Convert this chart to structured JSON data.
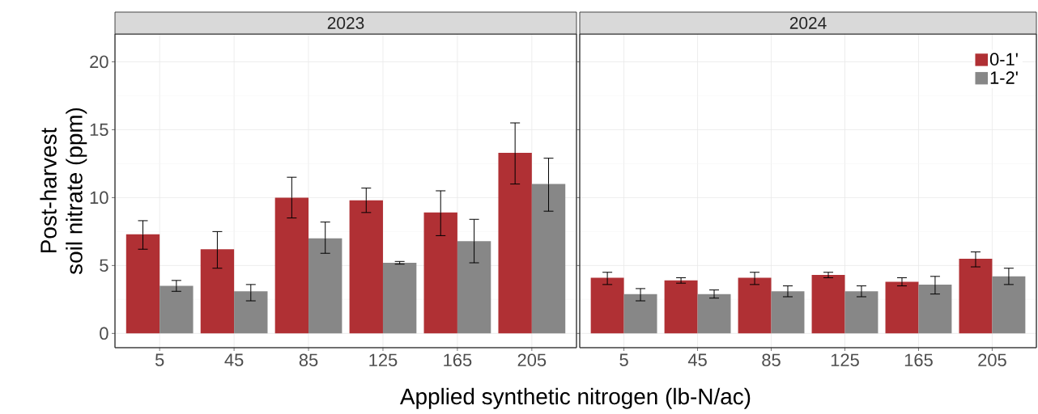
{
  "chart_data": [
    {
      "type": "bar",
      "title": "2023",
      "xlabel": "Applied synthetic nitrogen (lb-N/ac)",
      "ylabel": "Post-harvest soil nitrate (ppm)",
      "categories": [
        "5",
        "45",
        "85",
        "125",
        "165",
        "205"
      ],
      "series": [
        {
          "color": "#b03034",
          "values": [
            7.3,
            6.2,
            10.0,
            9.8,
            8.9,
            13.3
          ],
          "errors": [
            [
              6.2,
              8.3
            ],
            [
              4.8,
              7.5
            ],
            [
              8.5,
              11.5
            ],
            [
              8.9,
              10.7
            ],
            [
              7.2,
              10.5
            ],
            [
              11.0,
              15.5
            ]
          ]
        },
        {
          "color": "#878787",
          "values": [
            3.5,
            3.1,
            7.0,
            5.2,
            6.8,
            11.0
          ],
          "errors": [
            [
              3.1,
              3.9
            ],
            [
              2.4,
              3.6
            ],
            [
              5.9,
              8.2
            ],
            [
              5.1,
              5.3
            ],
            [
              5.2,
              8.4
            ],
            [
              9.0,
              12.9
            ]
          ]
        }
      ],
      "ylim": [
        -1.05,
        22.05
      ],
      "yticks": [
        0,
        5,
        10,
        15,
        20
      ],
      "grid": true
    },
    {
      "type": "bar",
      "title": "2024",
      "categories": [
        "5",
        "45",
        "85",
        "125",
        "165",
        "205"
      ],
      "series": [
        {
          "name": "0-1'",
          "color": "#b03034",
          "values": [
            4.1,
            3.9,
            4.1,
            4.3,
            3.8,
            5.5
          ],
          "errors": [
            [
              3.6,
              4.5
            ],
            [
              3.7,
              4.1
            ],
            [
              3.6,
              4.5
            ],
            [
              4.1,
              4.5
            ],
            [
              3.5,
              4.1
            ],
            [
              4.9,
              6.0
            ]
          ]
        },
        {
          "name": "1-2'",
          "color": "#878787",
          "values": [
            2.9,
            2.9,
            3.1,
            3.1,
            3.6,
            4.2
          ],
          "errors": [
            [
              2.4,
              3.3
            ],
            [
              2.6,
              3.2
            ],
            [
              2.7,
              3.5
            ],
            [
              2.7,
              3.5
            ],
            [
              2.9,
              4.2
            ],
            [
              3.6,
              4.8
            ]
          ]
        }
      ],
      "ylim": [
        -1.05,
        22.05
      ],
      "yticks": [
        0,
        5,
        10,
        15,
        20
      ],
      "grid": true,
      "tick_labels": "x",
      "legend": "top right"
    }
  ]
}
